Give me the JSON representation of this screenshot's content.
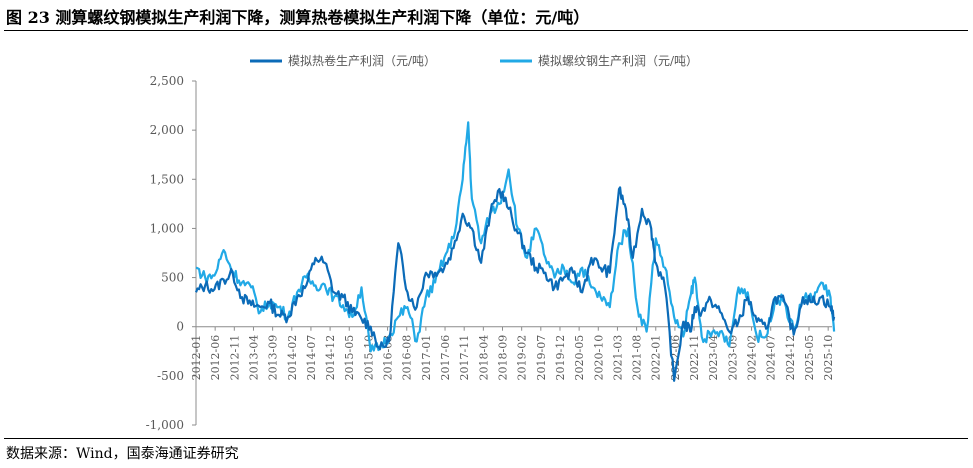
{
  "header": {
    "title": "图 23 测算螺纹钢模拟生产利润下降，测算热卷模拟生产利润下降（单位：元/吨）"
  },
  "footer": {
    "source": "数据来源：Wind，国泰海通证券研究"
  },
  "colors": {
    "hot_rolled": "#0b6bb8",
    "rebar": "#21a9e6",
    "axis": "#8c8c8c",
    "text": "#595959"
  },
  "chart_data": {
    "type": "line",
    "title": "",
    "xlabel": "",
    "ylabel": "",
    "ylim": [
      -1000,
      2500
    ],
    "yticks": [
      -1000,
      -500,
      0,
      500,
      1000,
      1500,
      2000,
      2500
    ],
    "ytick_labels": [
      "-1,000",
      "-500",
      "0",
      "500",
      "1,000",
      "1,500",
      "2,000",
      "2,500"
    ],
    "x_start": "2012-01",
    "x_end": "2025-11",
    "xtick_labels": [
      "2012-01",
      "2012-06",
      "2012-11",
      "2013-04",
      "2013-09",
      "2014-02",
      "2014-07",
      "2014-12",
      "2015-05",
      "2015-10",
      "2016-03",
      "2016-08",
      "2017-01",
      "2017-06",
      "2017-11",
      "2018-04",
      "2018-09",
      "2019-02",
      "2019-07",
      "2019-12",
      "2020-05",
      "2020-10",
      "2021-03",
      "2021-08",
      "2022-01",
      "2022-06",
      "2022-11",
      "2023-04",
      "2023-09",
      "2024-02",
      "2024-07",
      "2024-12",
      "2025-05",
      "2025-10"
    ],
    "legend_position": "top-center",
    "series": [
      {
        "name": "模拟热卷生产利润（元/吨）",
        "x": [
          2012.0,
          2012.2,
          2012.4,
          2012.6,
          2012.8,
          2013.0,
          2013.2,
          2013.4,
          2013.6,
          2013.8,
          2014.0,
          2014.2,
          2014.4,
          2014.6,
          2014.8,
          2015.0,
          2015.2,
          2015.4,
          2015.6,
          2015.8,
          2016.0,
          2016.2,
          2016.4,
          2016.6,
          2016.8,
          2017.0,
          2017.2,
          2017.4,
          2017.6,
          2017.8,
          2018.0,
          2018.2,
          2018.4,
          2018.6,
          2018.8,
          2019.0,
          2019.2,
          2019.4,
          2019.6,
          2019.8,
          2020.0,
          2020.2,
          2020.4,
          2020.6,
          2020.8,
          2021.0,
          2021.2,
          2021.35,
          2021.5,
          2021.7,
          2021.9,
          2022.0,
          2022.2,
          2022.4,
          2022.6,
          2022.75,
          2022.85,
          2023.0,
          2023.2,
          2023.4,
          2023.6,
          2023.8,
          2024.0,
          2024.2,
          2024.4,
          2024.6,
          2024.8,
          2025.0,
          2025.2,
          2025.4,
          2025.6,
          2025.8,
          2025.88
        ],
        "values": [
          350,
          420,
          380,
          480,
          540,
          300,
          220,
          200,
          240,
          120,
          100,
          300,
          420,
          700,
          650,
          350,
          300,
          150,
          80,
          0,
          -230,
          -150,
          850,
          350,
          200,
          550,
          550,
          600,
          800,
          1150,
          1000,
          650,
          1150,
          1400,
          1200,
          950,
          750,
          600,
          550,
          400,
          500,
          550,
          350,
          700,
          600,
          550,
          1400,
          1200,
          700,
          1200,
          1000,
          650,
          400,
          -550,
          50,
          -50,
          200,
          150,
          270,
          150,
          -50,
          50,
          300,
          50,
          -20,
          300,
          250,
          -80,
          300,
          250,
          300,
          200,
          100
        ]
      },
      {
        "name": "模拟螺纹钢生产利润（元/吨）",
        "x": [
          2012.0,
          2012.2,
          2012.4,
          2012.6,
          2012.8,
          2013.0,
          2013.2,
          2013.4,
          2013.6,
          2013.8,
          2014.0,
          2014.2,
          2014.4,
          2014.6,
          2014.8,
          2015.0,
          2015.2,
          2015.4,
          2015.6,
          2015.8,
          2016.0,
          2016.2,
          2016.4,
          2016.6,
          2016.8,
          2017.0,
          2017.2,
          2017.4,
          2017.6,
          2017.8,
          2017.92,
          2018.0,
          2018.2,
          2018.4,
          2018.6,
          2018.8,
          2019.0,
          2019.2,
          2019.4,
          2019.6,
          2019.8,
          2020.0,
          2020.2,
          2020.4,
          2020.6,
          2020.8,
          2021.0,
          2021.2,
          2021.4,
          2021.6,
          2021.8,
          2022.0,
          2022.2,
          2022.4,
          2022.6,
          2022.75,
          2022.85,
          2023.0,
          2023.2,
          2023.4,
          2023.6,
          2023.8,
          2024.0,
          2024.2,
          2024.4,
          2024.6,
          2024.8,
          2025.0,
          2025.2,
          2025.4,
          2025.6,
          2025.8,
          2025.88
        ],
        "values": [
          600,
          500,
          520,
          780,
          560,
          450,
          400,
          150,
          250,
          200,
          100,
          350,
          500,
          420,
          430,
          300,
          220,
          100,
          400,
          -250,
          -200,
          -100,
          100,
          200,
          -150,
          300,
          450,
          700,
          900,
          1500,
          2080,
          1300,
          850,
          1150,
          1250,
          1600,
          1000,
          700,
          1000,
          700,
          500,
          600,
          450,
          600,
          400,
          300,
          200,
          850,
          1000,
          200,
          -50,
          900,
          600,
          100,
          -100,
          300,
          500,
          -100,
          -100,
          -50,
          -200,
          400,
          350,
          -100,
          -100,
          300,
          250,
          -50,
          300,
          280,
          450,
          300,
          -50
        ]
      }
    ]
  }
}
